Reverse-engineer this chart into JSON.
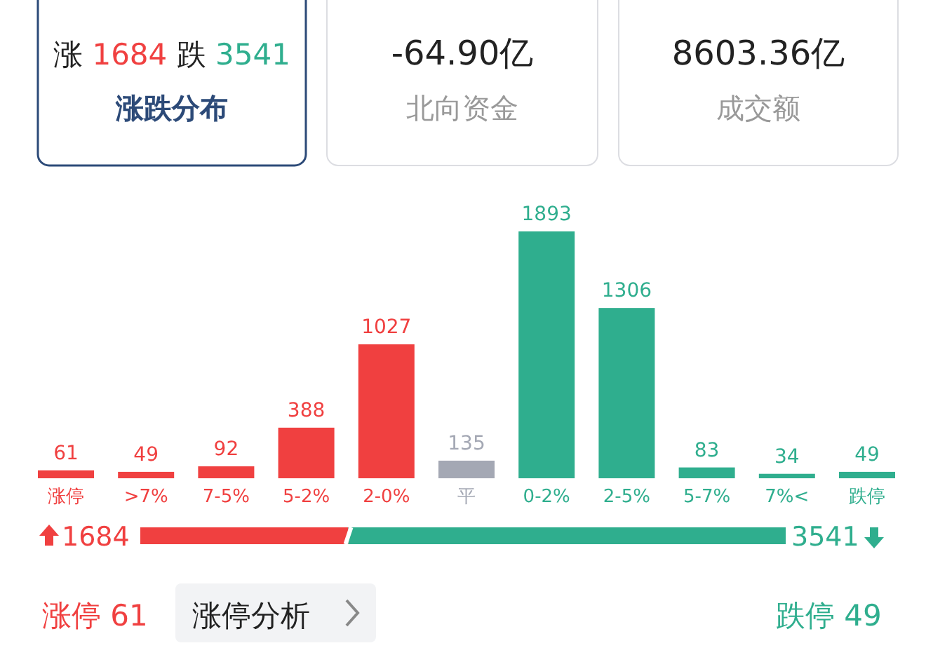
{
  "chart_data": [
    {
      "type": "other",
      "annotations": [
        "涨 1684 跌 3541",
        "涨跌分布",
        "-64.90亿",
        "北向资金",
        "8603.36亿",
        "成交额"
      ]
    },
    {
      "type": "bar",
      "categories": [
        "涨停",
        ">7%",
        "7-5%",
        "5-2%",
        "2-0%",
        "平",
        "0-2%",
        "2-5%",
        "5-7%",
        "7%<",
        "跌停"
      ],
      "values": [
        61,
        49,
        92,
        388,
        1027,
        135,
        1893,
        1306,
        83,
        34,
        49
      ],
      "colors": [
        "#f04040",
        "#f04040",
        "#f04040",
        "#f04040",
        "#f04040",
        "#a4a8b4",
        "#2fae8e",
        "#2fae8e",
        "#2fae8e",
        "#2fae8e",
        "#2fae8e"
      ],
      "ylim": [
        0,
        1893
      ],
      "data_labels": true,
      "tick_labels": "x"
    },
    {
      "type": "bar",
      "orientation": "horizontal",
      "stacked": true,
      "categories": [
        null
      ],
      "data_labels": true,
      "tick_labels": false,
      "series": [
        {
          "color": "#f04040",
          "values": [
            1684
          ]
        },
        {
          "color": "#2fae8e",
          "values": [
            3541
          ]
        }
      ]
    },
    {
      "type": "other",
      "annotations": [
        "涨停 61",
        "涨停分析",
        "跌停 49"
      ]
    }
  ]
}
